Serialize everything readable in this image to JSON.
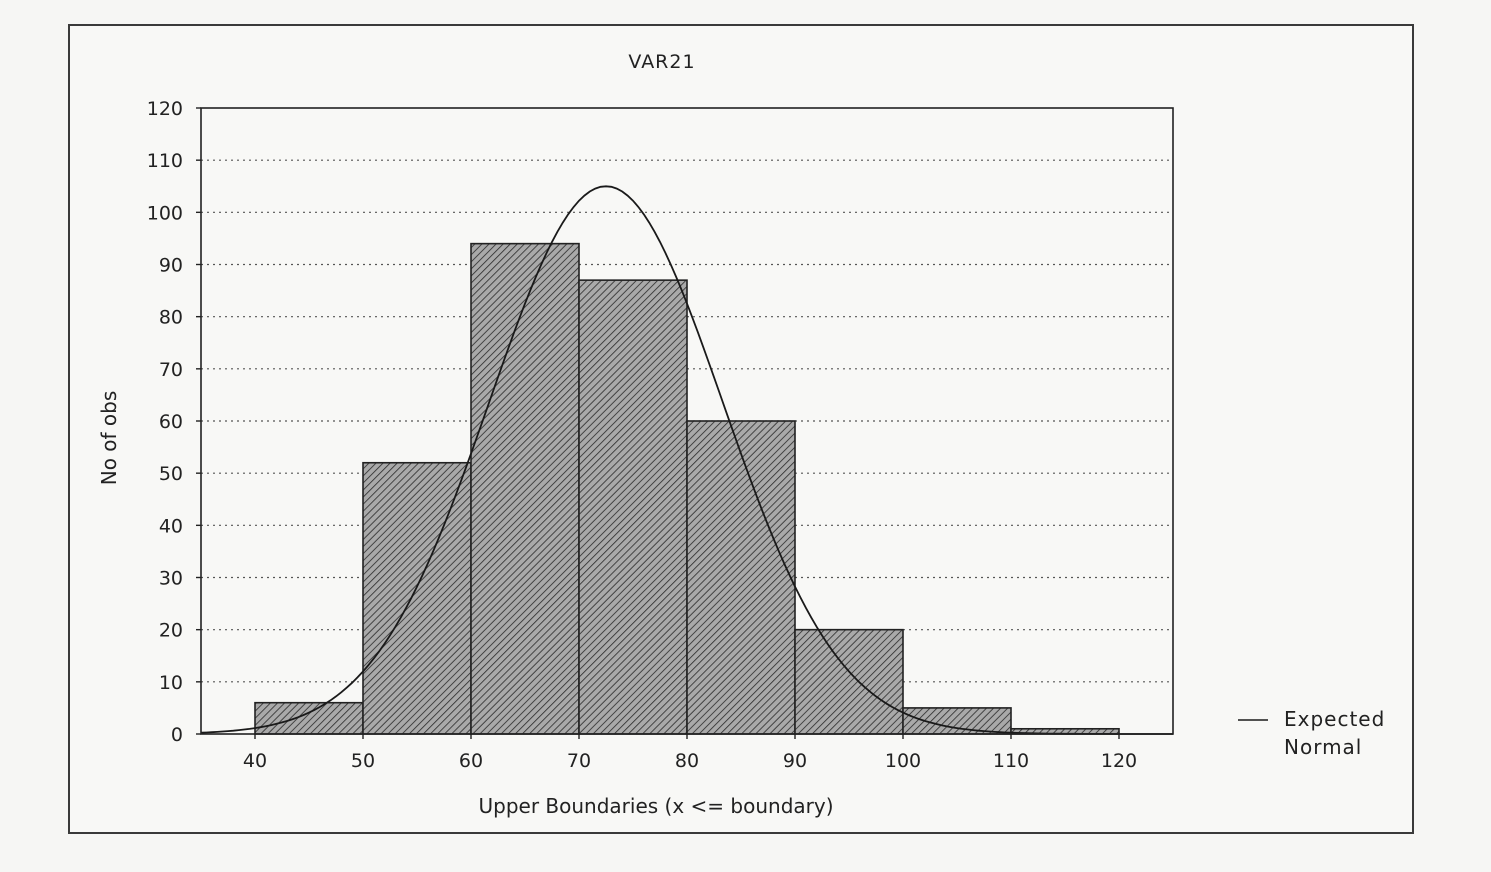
{
  "chart_data": {
    "type": "bar",
    "title": "VAR21",
    "xlabel": "Upper Boundaries (x <= boundary)",
    "ylabel": "No of obs",
    "xlim": [
      35,
      125
    ],
    "ylim": [
      0,
      120
    ],
    "x_ticks": [
      40,
      50,
      60,
      70,
      80,
      90,
      100,
      110,
      120
    ],
    "y_ticks": [
      0,
      10,
      20,
      30,
      40,
      50,
      60,
      70,
      80,
      90,
      100,
      110,
      120
    ],
    "grid": "horizontal dotted",
    "bins": [
      {
        "lower": 40,
        "upper": 50,
        "value": 6
      },
      {
        "lower": 50,
        "upper": 60,
        "value": 52
      },
      {
        "lower": 60,
        "upper": 70,
        "value": 94
      },
      {
        "lower": 70,
        "upper": 80,
        "value": 87
      },
      {
        "lower": 80,
        "upper": 90,
        "value": 60
      },
      {
        "lower": 90,
        "upper": 100,
        "value": 20
      },
      {
        "lower": 100,
        "upper": 110,
        "value": 5
      },
      {
        "lower": 110,
        "upper": 120,
        "value": 1
      }
    ],
    "expected_normal": {
      "name": "Expected Normal",
      "mean": 72.5,
      "sd": 10.8,
      "peak": 105
    },
    "legend": {
      "labels": [
        "Expected",
        "Normal"
      ],
      "placement": "right"
    },
    "colors": {
      "bar_fill": "#9a9a9a",
      "hatch": "#2a2a2a",
      "line": "#1a1a1a",
      "grid": "#555555"
    }
  }
}
